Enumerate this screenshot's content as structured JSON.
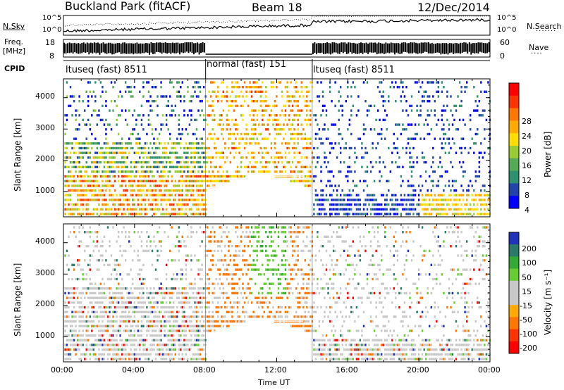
{
  "header": {
    "site": "Buckland Park (fitACF)",
    "beam": "Beam 18",
    "date": "12/Dec/2014"
  },
  "noise_panel": {
    "left_label": "N.Sky",
    "right_label": "N.Search",
    "ytick_top": "10^5",
    "ytick_bottom": "10^0"
  },
  "freq_panel": {
    "left_label_1": "Freq.",
    "left_label_2": "[MHz]",
    "right_label": "Nave",
    "left_ticks": [
      "18",
      "8"
    ],
    "right_ticks": [
      "60",
      "0"
    ]
  },
  "cpid": {
    "label": "CPID",
    "segments": [
      {
        "name": "ltuseq (fast) 8511",
        "start_h": 0,
        "end_h": 8
      },
      {
        "name": "normal (fast) 151",
        "start_h": 8,
        "end_h": 14
      },
      {
        "name": "ltuseq (fast) 8511",
        "start_h": 14,
        "end_h": 24
      }
    ]
  },
  "power_colorbar": {
    "title": "Power [dB]",
    "ticks": [
      "28",
      "24",
      "20",
      "16",
      "12",
      "8",
      "4"
    ],
    "colors": [
      "#ff0000",
      "#ff3300",
      "#ff7700",
      "#ffaa00",
      "#ffdd00",
      "#99cc33",
      "#55aa55",
      "#2f8f6f",
      "#2244aa",
      "#0000ff"
    ]
  },
  "velocity_colorbar": {
    "title": "Velocity [m s⁻¹]",
    "ticks": [
      "200",
      "100",
      "50",
      "15",
      "-15",
      "-50",
      "-100",
      "-200"
    ],
    "colors": [
      "#2233bb",
      "#2a7a6a",
      "#33aa33",
      "#66cc33",
      "#c8c8c8",
      "#c8c8c8",
      "#ffaa00",
      "#ff7700",
      "#ff3300",
      "#ff0000"
    ]
  },
  "chart_data": [
    {
      "type": "heatmap",
      "name": "power",
      "ylabel": "Slant Range [km]",
      "y_ticks": [
        "1000",
        "2000",
        "3000",
        "4000"
      ],
      "ylim": [
        200,
        4600
      ],
      "xlim_hours": [
        0,
        24
      ],
      "colorbar_label": "Power [dB]",
      "clim": [
        0,
        32
      ]
    },
    {
      "type": "heatmap",
      "name": "velocity",
      "ylabel": "Slant Range [km]",
      "y_ticks": [
        "1000",
        "2000",
        "3000",
        "4000"
      ],
      "ylim": [
        200,
        4600
      ],
      "xlim_hours": [
        0,
        24
      ],
      "colorbar_label": "Velocity [m s⁻¹]",
      "clim": [
        -250,
        250
      ]
    }
  ],
  "xaxis": {
    "label": "Time UT",
    "ticks": [
      "00:00",
      "04:00",
      "08:00",
      "12:00",
      "16:00",
      "20:00",
      "00:00"
    ]
  }
}
